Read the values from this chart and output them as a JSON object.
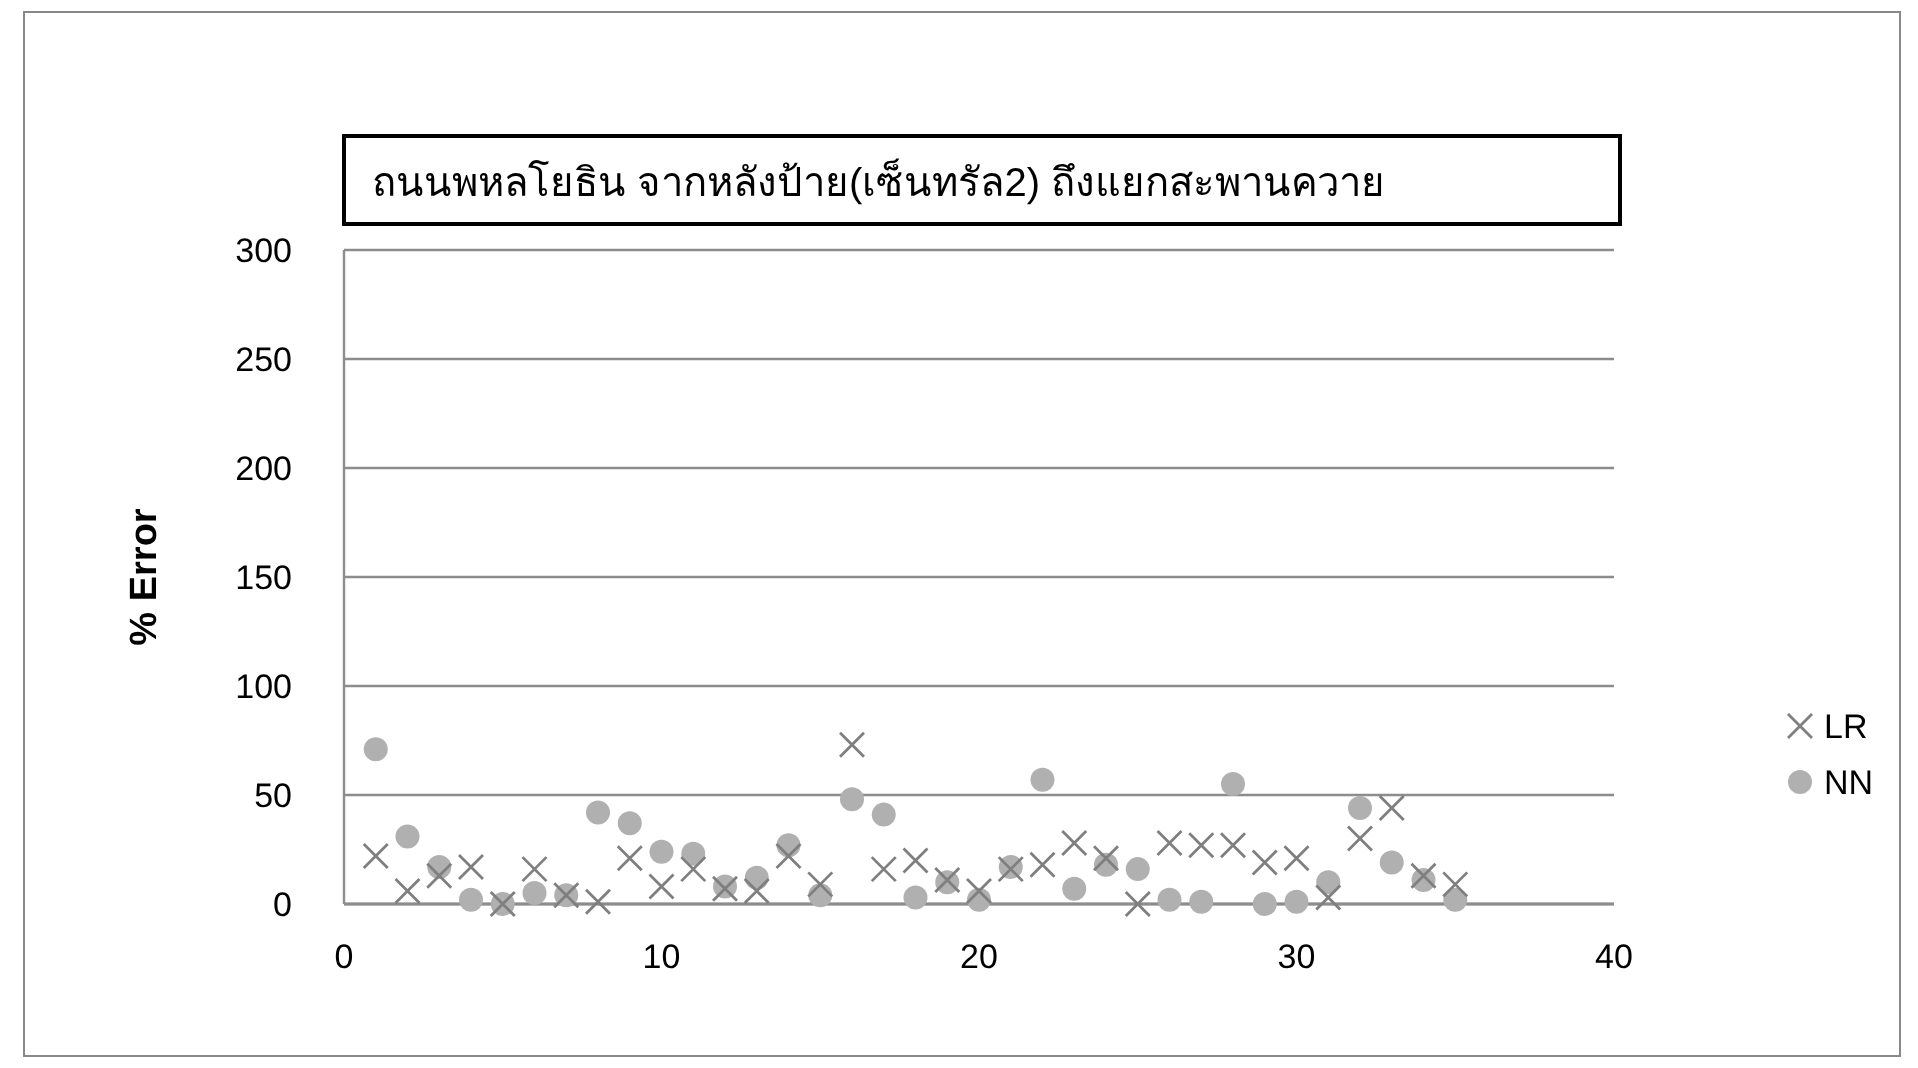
{
  "chart_data": {
    "type": "scatter",
    "title": "ถนนพหลโยธิน จากหลังป้าย(เซ็นทรัล2) ถึงแยกสะพานควาย",
    "ylabel": "% Error",
    "x": [
      1,
      2,
      3,
      4,
      5,
      6,
      7,
      8,
      9,
      10,
      11,
      12,
      13,
      14,
      15,
      16,
      17,
      18,
      19,
      20,
      21,
      22,
      23,
      24,
      25,
      26,
      27,
      28,
      29,
      30,
      31,
      32,
      33,
      34,
      35
    ],
    "series": [
      {
        "name": "LR",
        "color": "#7f7f7f",
        "marker": "cross",
        "values": [
          22,
          6,
          13,
          17,
          0,
          16,
          4,
          1,
          21,
          8,
          16,
          7,
          6,
          22,
          9,
          73,
          16,
          20,
          11,
          6,
          16,
          18,
          28,
          21,
          0,
          28,
          27,
          27,
          19,
          21,
          3,
          30,
          44,
          13,
          9
        ]
      },
      {
        "name": "NN",
        "color": "#b0b0b0",
        "marker": "circle",
        "values": [
          71,
          31,
          17,
          2,
          0,
          5,
          4,
          42,
          37,
          24,
          23,
          8,
          12,
          27,
          4,
          48,
          41,
          3,
          10,
          2,
          17,
          57,
          7,
          18,
          16,
          2,
          1,
          55,
          0,
          1,
          10,
          44,
          19,
          11,
          2
        ]
      }
    ],
    "xlim": [
      0,
      40
    ],
    "xticks": [
      0,
      10,
      20,
      30,
      40
    ],
    "ylim": [
      0,
      300
    ],
    "yticks": [
      0,
      50,
      100,
      150,
      200,
      250,
      300
    ],
    "grid": "y",
    "legend": "right"
  }
}
